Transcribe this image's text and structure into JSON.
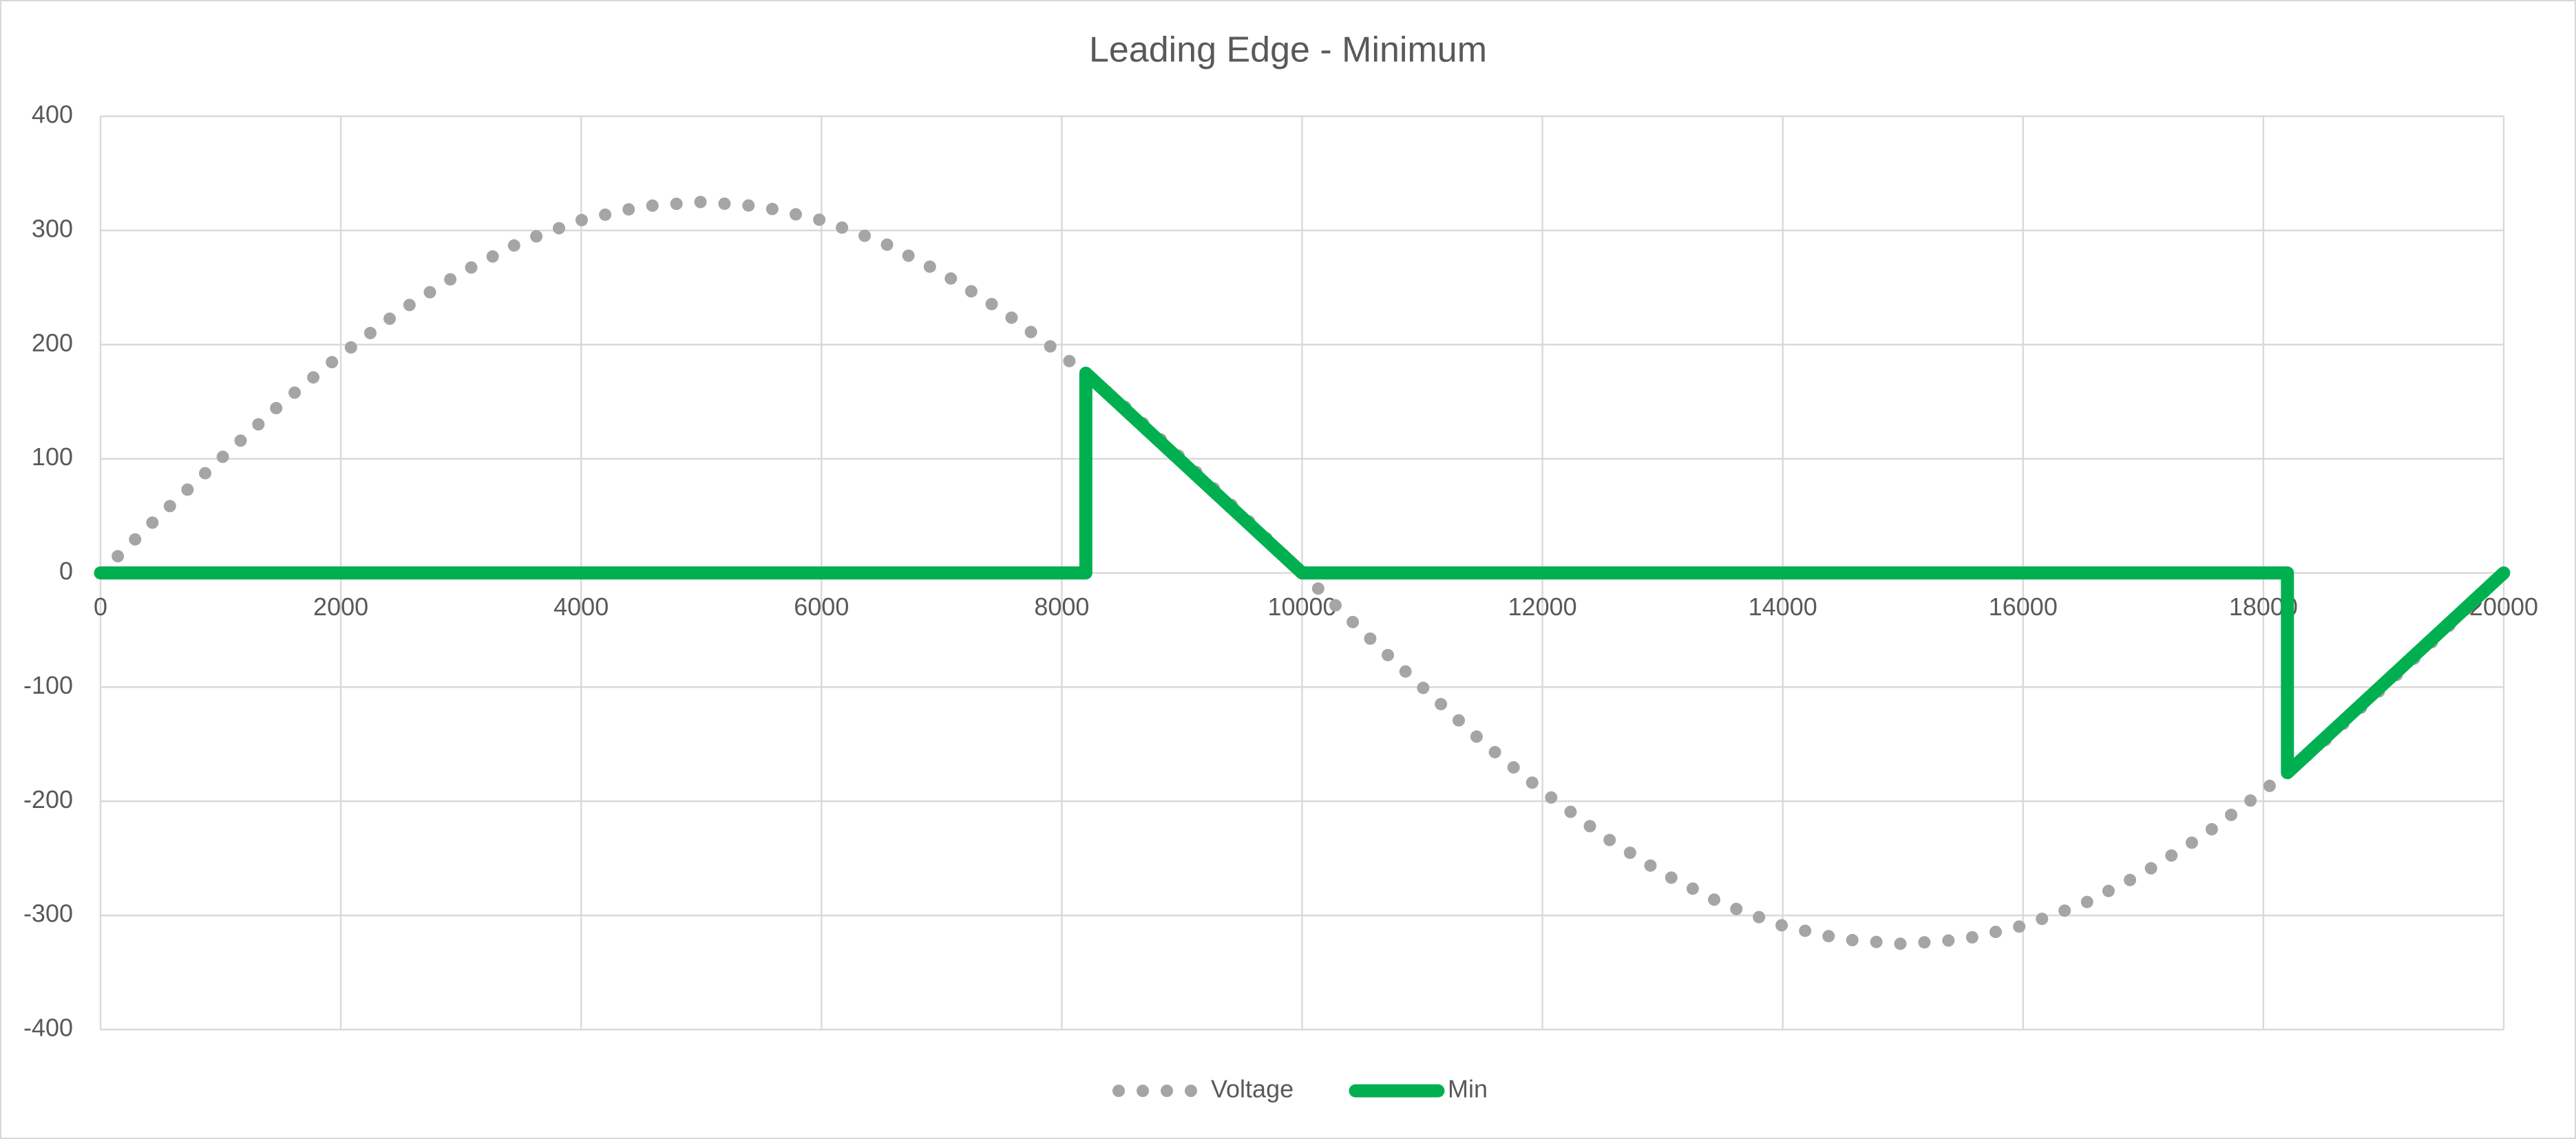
{
  "chart_data": {
    "type": "line",
    "title": "Leading Edge - Minimum",
    "xlim": [
      0,
      20000
    ],
    "xticks": [
      0,
      2000,
      4000,
      6000,
      8000,
      10000,
      12000,
      14000,
      16000,
      18000,
      20000
    ],
    "ylim": [
      -400,
      400
    ],
    "yticks": [
      -400,
      -300,
      -200,
      -100,
      0,
      100,
      200,
      300,
      400
    ],
    "grid": true,
    "legend": "bottom",
    "series": [
      {
        "name": "Voltage",
        "color": "#a5a5a5",
        "style": "dotted",
        "x": [
          0,
          500,
          1000,
          1500,
          2000,
          2500,
          3000,
          3500,
          4000,
          4500,
          5000,
          5500,
          6000,
          6500,
          7000,
          7500,
          8000,
          8500,
          9000,
          9500,
          10000,
          10500,
          11000,
          11500,
          12000,
          12500,
          13000,
          13500,
          14000,
          14500,
          15000,
          15500,
          16000,
          16500,
          17000,
          17500,
          18000,
          18500,
          19000,
          19500,
          20000
        ],
        "values": [
          0,
          51,
          100,
          148,
          191,
          230,
          263,
          290,
          309,
          321,
          325,
          321,
          309,
          290,
          263,
          230,
          191,
          148,
          100,
          51,
          0,
          -51,
          -100,
          -148,
          -191,
          -230,
          -263,
          -290,
          -309,
          -321,
          -325,
          -321,
          -309,
          -290,
          -263,
          -230,
          -191,
          -148,
          -100,
          -51,
          0
        ]
      },
      {
        "name": "Min",
        "color": "#00b050",
        "style": "solid",
        "x": [
          0,
          8200,
          8200,
          10000,
          18200,
          18200,
          20000
        ],
        "values": [
          0,
          0,
          175,
          0,
          0,
          -175,
          0
        ]
      }
    ]
  }
}
